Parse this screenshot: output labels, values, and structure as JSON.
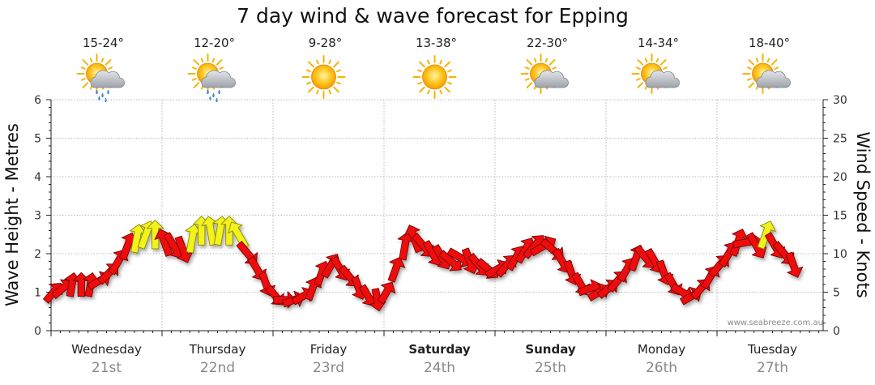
{
  "chart_data": {
    "type": "line",
    "title": "7 day wind & wave forecast for Epping",
    "ylabel_left": "Wave Height - Metres",
    "ylabel_right": "Wind Speed - Knots",
    "left_ylim": [
      0,
      6
    ],
    "right_ylim": [
      0,
      30
    ],
    "left_ticks": [
      "0",
      "1",
      "2",
      "3",
      "4",
      "5",
      "6"
    ],
    "right_ticks": [
      "0",
      "5",
      "10",
      "15",
      "20",
      "25",
      "30"
    ],
    "watermark": "www.seabreeze.com.au",
    "days": [
      {
        "name": "Wednesday",
        "date": "21st",
        "temp": "15-24°",
        "icon": "sun-cloud-rain-icon",
        "bold": false
      },
      {
        "name": "Thursday",
        "date": "22nd",
        "temp": "12-20°",
        "icon": "sun-cloud-rain-icon",
        "bold": false
      },
      {
        "name": "Friday",
        "date": "23rd",
        "temp": "9-28°",
        "icon": "sun-icon",
        "bold": false
      },
      {
        "name": "Saturday",
        "date": "24th",
        "temp": "13-38°",
        "icon": "sun-icon",
        "bold": true
      },
      {
        "name": "Sunday",
        "date": "25th",
        "temp": "22-30°",
        "icon": "sun-cloud-icon",
        "bold": true
      },
      {
        "name": "Monday",
        "date": "26th",
        "temp": "14-34°",
        "icon": "sun-cloud-icon",
        "bold": false
      },
      {
        "name": "Tuesday",
        "date": "27th",
        "temp": "18-40°",
        "icon": "sun-cloud-icon",
        "bold": false
      }
    ],
    "series": [
      {
        "name": "Wind speed (knots)",
        "unit": "knots",
        "interval_hours": 2,
        "values": [
          5.5,
          6.0,
          6.0,
          6.0,
          6.0,
          7.0,
          8.0,
          10.0,
          11.5,
          12.5,
          12.5,
          12.5,
          11.5,
          11.0,
          10.5,
          12.5,
          13.0,
          13.0,
          13.0,
          13.0,
          12.5,
          10.0,
          8.0,
          6.0,
          4.5,
          4.0,
          4.0,
          4.5,
          5.5,
          7.5,
          8.5,
          8.0,
          7.0,
          5.5,
          4.5,
          4.0,
          5.0,
          8.0,
          11.0,
          12.0,
          11.0,
          10.0,
          9.5,
          9.0,
          9.5,
          9.0,
          8.5,
          8.0,
          8.0,
          8.5,
          9.5,
          10.5,
          11.0,
          11.0,
          10.5,
          9.0,
          7.5,
          6.0,
          5.5,
          5.0,
          5.5,
          6.5,
          8.0,
          9.5,
          9.5,
          9.0,
          7.5,
          6.0,
          5.0,
          4.5,
          5.5,
          7.0,
          8.5,
          10.0,
          11.5,
          11.5,
          11.0,
          12.5,
          11.0,
          10.0,
          8.5
        ]
      },
      {
        "name": "Wave height (m)",
        "unit": "m",
        "interval_hours": 2,
        "values": [
          1.0,
          1.1,
          1.2,
          1.2,
          1.2,
          1.3,
          1.5,
          1.8,
          2.2,
          2.4,
          2.5,
          2.5,
          2.3,
          2.2,
          2.1,
          2.4,
          2.6,
          2.6,
          2.6,
          2.6,
          2.5,
          2.0,
          1.6,
          1.2,
          0.9,
          0.8,
          0.8,
          0.9,
          1.1,
          1.5,
          1.7,
          1.6,
          1.4,
          1.1,
          0.9,
          0.8,
          1.0,
          1.6,
          2.2,
          2.4,
          2.2,
          2.0,
          1.9,
          1.8,
          1.9,
          1.8,
          1.7,
          1.6,
          1.6,
          1.7,
          1.9,
          2.1,
          2.2,
          2.2,
          2.1,
          1.8,
          1.5,
          1.2,
          1.1,
          1.0,
          1.1,
          1.3,
          1.6,
          1.9,
          1.9,
          1.8,
          1.5,
          1.2,
          1.0,
          0.9,
          1.1,
          1.4,
          1.7,
          2.0,
          2.3,
          2.3,
          2.2,
          2.5,
          2.2,
          2.0,
          1.7
        ]
      }
    ],
    "legend_note": "Arrows show wind speed; yellow arrows mark stronger winds, red arrows lighter winds."
  },
  "colors": {
    "strong_wind": "#f2f21c",
    "light_wind": "#ee1111",
    "grid": "#b8b8b8",
    "axis": "#222222"
  }
}
